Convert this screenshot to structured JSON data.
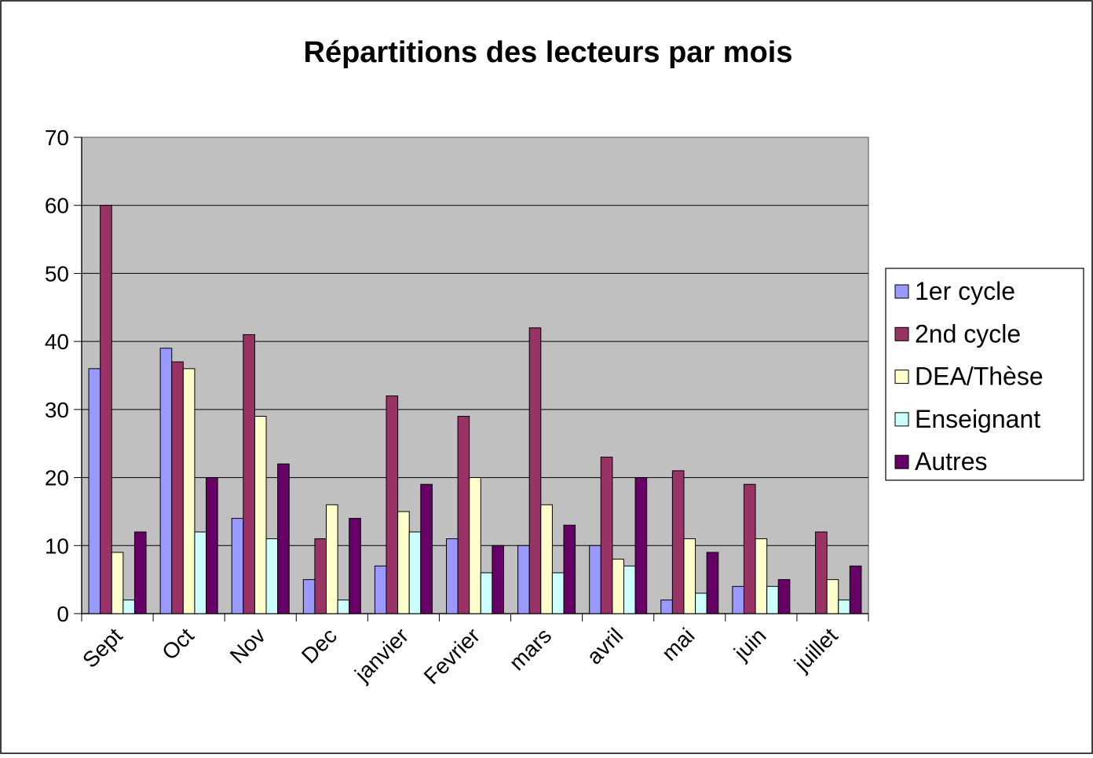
{
  "chart_data": {
    "type": "bar",
    "title": "Répartitions des lecteurs par mois",
    "categories": [
      "Sept",
      "Oct",
      "Nov",
      "Dec",
      "janvier",
      "Fevrier",
      "mars",
      "avril",
      "mai",
      "juin",
      "juillet"
    ],
    "series": [
      {
        "name": "1er cycle",
        "color": "#9999ff",
        "values": [
          36,
          39,
          14,
          5,
          7,
          11,
          10,
          10,
          2,
          4,
          0
        ]
      },
      {
        "name": "2nd cycle",
        "color": "#993366",
        "values": [
          60,
          37,
          41,
          11,
          32,
          29,
          42,
          23,
          21,
          19,
          12
        ]
      },
      {
        "name": "DEA/Thèse",
        "color": "#ffffcc",
        "values": [
          9,
          36,
          29,
          16,
          15,
          20,
          16,
          8,
          11,
          11,
          5
        ]
      },
      {
        "name": "Enseignant",
        "color": "#ccffff",
        "values": [
          2,
          12,
          11,
          2,
          12,
          6,
          6,
          7,
          3,
          4,
          2
        ]
      },
      {
        "name": "Autres",
        "color": "#660066",
        "values": [
          12,
          20,
          22,
          14,
          19,
          10,
          13,
          20,
          9,
          5,
          7
        ]
      }
    ],
    "ylim": [
      0,
      70
    ],
    "yticks": [
      0,
      10,
      20,
      30,
      40,
      50,
      60,
      70
    ],
    "grid": true,
    "legend": "right"
  }
}
